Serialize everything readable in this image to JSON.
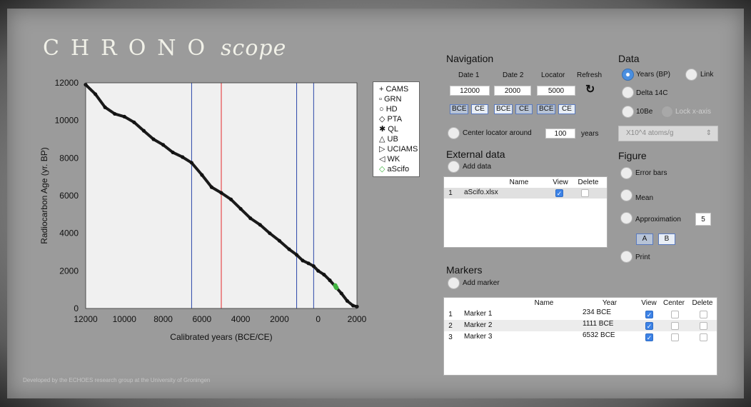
{
  "app": {
    "logo_main": "CHRONO",
    "logo_scope": "scope",
    "footer": "Developed by the ECHOES research group at the University of Groningen"
  },
  "chart_data": {
    "type": "scatter",
    "xlabel": "Calibrated years (BCE/CE)",
    "ylabel": "Radiocarbon Age (yr. BP)",
    "xlim": [
      12000,
      2000
    ],
    "ylim": [
      0,
      12000
    ],
    "xticks": [
      "12000",
      "10000",
      "8000",
      "6000",
      "4000",
      "2000",
      "0",
      "2000"
    ],
    "yticks": [
      "0",
      "2000",
      "4000",
      "6000",
      "8000",
      "10000",
      "12000"
    ],
    "curve_points": [
      [
        -12000,
        11900
      ],
      [
        -11500,
        11400
      ],
      [
        -11000,
        10700
      ],
      [
        -10500,
        10350
      ],
      [
        -10000,
        10200
      ],
      [
        -9500,
        9900
      ],
      [
        -9000,
        9450
      ],
      [
        -8500,
        9000
      ],
      [
        -8000,
        8700
      ],
      [
        -7500,
        8300
      ],
      [
        -7000,
        8050
      ],
      [
        -6532,
        7750
      ],
      [
        -6000,
        7100
      ],
      [
        -5500,
        6450
      ],
      [
        -5000,
        6150
      ],
      [
        -4500,
        5800
      ],
      [
        -4000,
        5300
      ],
      [
        -3500,
        4800
      ],
      [
        -3000,
        4450
      ],
      [
        -2500,
        4000
      ],
      [
        -2000,
        3600
      ],
      [
        -1500,
        3150
      ],
      [
        -1111,
        2850
      ],
      [
        -800,
        2550
      ],
      [
        -500,
        2400
      ],
      [
        -234,
        2250
      ],
      [
        0,
        2000
      ],
      [
        300,
        1800
      ],
      [
        600,
        1500
      ],
      [
        900,
        1150
      ],
      [
        1200,
        800
      ],
      [
        1500,
        400
      ],
      [
        1800,
        150
      ],
      [
        2000,
        100
      ]
    ],
    "ascifo_points": [
      [
        880,
        1220
      ],
      [
        910,
        1150
      ],
      [
        940,
        1100
      ]
    ],
    "vlines": [
      {
        "x": -6532,
        "color": "#2a46a8"
      },
      {
        "x": -5000,
        "color": "#e3272b"
      },
      {
        "x": -1111,
        "color": "#2a46a8"
      },
      {
        "x": -234,
        "color": "#2a46a8"
      }
    ],
    "legend": [
      {
        "symbol": "+",
        "name": "CAMS"
      },
      {
        "symbol": "▫",
        "name": "GRN"
      },
      {
        "symbol": "○",
        "name": "HD"
      },
      {
        "symbol": "◇",
        "name": "PTA"
      },
      {
        "symbol": "✱",
        "name": "QL"
      },
      {
        "symbol": "△",
        "name": "UB"
      },
      {
        "symbol": "▷",
        "name": "UCIAMS"
      },
      {
        "symbol": "◁",
        "name": "WK"
      },
      {
        "symbol": "◇",
        "name": "aScifo",
        "color": "#3fb23f"
      }
    ]
  },
  "navigation": {
    "title": "Navigation",
    "date1_label": "Date 1",
    "date2_label": "Date 2",
    "locator_label": "Locator",
    "refresh_label": "Refresh",
    "date1": "12000",
    "date2": "2000",
    "locator": "5000",
    "bce": "BCE",
    "ce": "CE",
    "center_label": "Center locator around",
    "center_value": "100",
    "center_unit": "years"
  },
  "data_section": {
    "title": "Data",
    "years_bp": "Years (BP)",
    "link": "Link",
    "delta14c": "Delta 14C",
    "be10": "10Be",
    "lock_x": "Lock x-axis",
    "units_select": "X10^4 atoms/g"
  },
  "external": {
    "title": "External data",
    "add_label": "Add data",
    "cols": {
      "name": "Name",
      "view": "View",
      "delete": "Delete"
    },
    "rows": [
      {
        "num": "1",
        "name": "aScifo.xlsx",
        "view": true,
        "delete": false
      }
    ]
  },
  "figure": {
    "title": "Figure",
    "error_bars": "Error bars",
    "mean": "Mean",
    "approximation": "Approximation",
    "approx_value": "5",
    "a": "A",
    "b": "B",
    "print": "Print"
  },
  "markers": {
    "title": "Markers",
    "add_label": "Add marker",
    "cols": {
      "name": "Name",
      "year": "Year",
      "view": "View",
      "center": "Center",
      "delete": "Delete"
    },
    "rows": [
      {
        "num": "1",
        "name": "Marker 1",
        "year": "234 BCE"
      },
      {
        "num": "2",
        "name": "Marker 2",
        "year": "1111 BCE"
      },
      {
        "num": "3",
        "name": "Marker 3",
        "year": "6532 BCE"
      }
    ]
  }
}
